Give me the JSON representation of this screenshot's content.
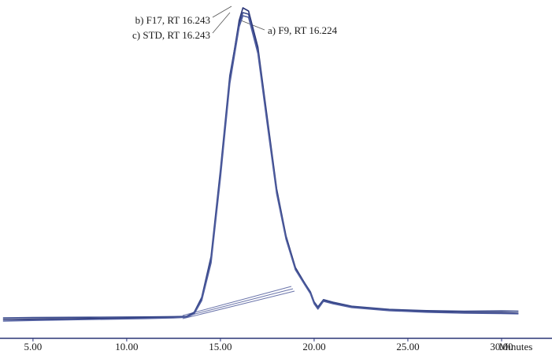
{
  "chart_data": {
    "type": "line",
    "x_label": "Minutes",
    "xlim": [
      3.24,
      32.69
    ],
    "ylim": [
      0,
      100
    ],
    "xticks": [
      {
        "value": 5,
        "label": "5.00"
      },
      {
        "value": 10,
        "label": "10.00"
      },
      {
        "value": 15,
        "label": "15.00"
      },
      {
        "value": 20,
        "label": "20.00"
      },
      {
        "value": 25,
        "label": "25.00"
      },
      {
        "value": 30,
        "label": "30.00"
      }
    ],
    "grid": false,
    "x": [
      3.4,
      5,
      8,
      11,
      12.5,
      13.2,
      13.6,
      14,
      14.5,
      15,
      15.5,
      16,
      16.2,
      16.5,
      17,
      17.5,
      18,
      18.5,
      19,
      19.5,
      19.8,
      20,
      20.2,
      20.5,
      21,
      22,
      24,
      26,
      28,
      30,
      30.9
    ],
    "series": [
      {
        "name": "a) F9, RT 16.224",
        "color": "#2a3577",
        "values": [
          1,
          1.1,
          1.3,
          1.5,
          1.6,
          1.8,
          3,
          7.5,
          20,
          47.5,
          77.5,
          96,
          100,
          99,
          87.5,
          65,
          42.5,
          27.5,
          17.5,
          12.5,
          9.5,
          6.2,
          4.5,
          7,
          6.2,
          5,
          4,
          3.5,
          3.2,
          3.2,
          3
        ]
      },
      {
        "name": "b) F17, RT 16.243",
        "color": "#3a4a8c",
        "values": [
          1.5,
          1.6,
          1.7,
          1.8,
          1.9,
          2,
          3.3,
          8,
          21,
          48.5,
          78.5,
          95,
          98.5,
          98,
          86.5,
          64,
          42,
          27,
          17,
          12.5,
          9.8,
          6.6,
          5,
          7.3,
          6.5,
          5.2,
          4.2,
          3.8,
          3.6,
          3.7,
          3.6
        ]
      },
      {
        "name": "c) STD, RT 16.243",
        "color": "#505ea0",
        "values": [
          0.5,
          0.7,
          1,
          1.3,
          1.5,
          1.7,
          2.8,
          7,
          19,
          46,
          76,
          94,
          97.5,
          97,
          85.5,
          63,
          41,
          26.5,
          16.8,
          12,
          9.2,
          6,
          4.3,
          6.8,
          6,
          4.8,
          3.8,
          3.3,
          3,
          2.9,
          2.8
        ]
      }
    ]
  }
}
